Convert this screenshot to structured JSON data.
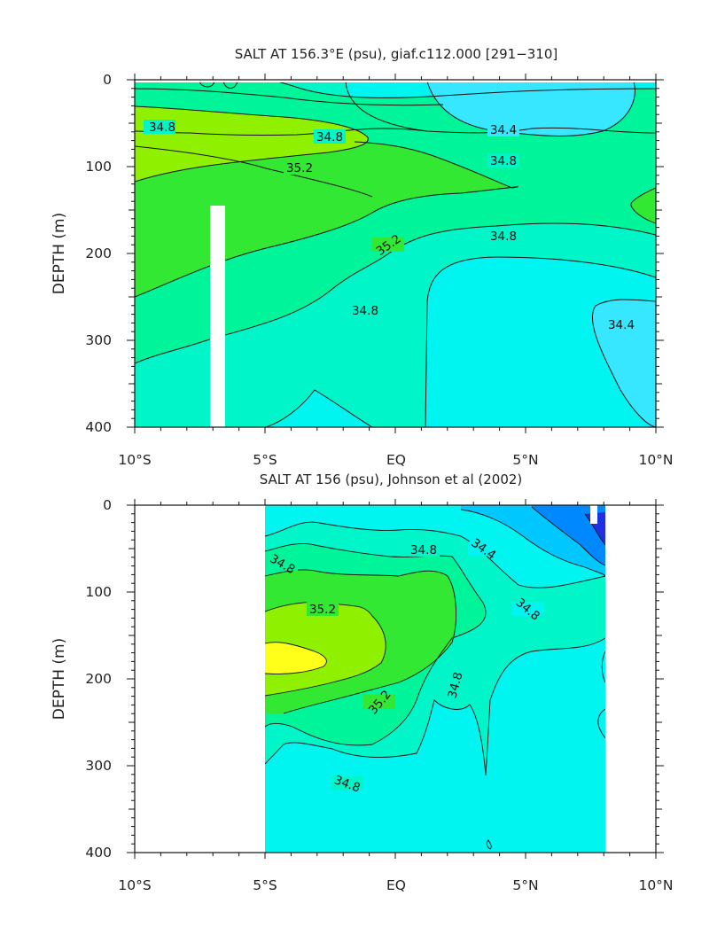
{
  "chart_data": [
    {
      "type": "contour",
      "title": "SALT AT 156.3°E (psu), giaf.c112.000 [291−310]",
      "xlabel": "",
      "ylabel": "DEPTH (m)",
      "x_ticks": [
        "10°S",
        "5°S",
        "EQ",
        "5°N",
        "10°N"
      ],
      "y_ticks": [
        "0",
        "100",
        "200",
        "300",
        "400"
      ],
      "xlim": [
        -10,
        10
      ],
      "ylim": [
        400,
        0
      ],
      "contour_labels": [
        "34.8",
        "34.8",
        "35.2",
        "34.4",
        "34.8",
        "35.2",
        "34.8",
        "34.8",
        "34.4"
      ],
      "bands": [
        {
          "range": "34.2-34.4",
          "color": "#37e6ff"
        },
        {
          "range": "34.4-34.6",
          "color": "#00f5f0"
        },
        {
          "range": "34.6-34.8",
          "color": "#00f5c8"
        },
        {
          "range": "34.8-35.0",
          "color": "#00f59a"
        },
        {
          "range": "35.0-35.2",
          "color": "#33e832"
        },
        {
          "range": "35.2-35.4",
          "color": "#8ff000"
        }
      ]
    },
    {
      "type": "contour",
      "title": "SALT AT 156 (psu), Johnson et al (2002)",
      "xlabel": "",
      "ylabel": "DEPTH (m)",
      "x_ticks": [
        "10°S",
        "5°S",
        "EQ",
        "5°N",
        "10°N"
      ],
      "y_ticks": [
        "0",
        "100",
        "200",
        "300",
        "400"
      ],
      "xlim": [
        -10,
        10
      ],
      "ylim": [
        400,
        0
      ],
      "data_extent_lon": [
        -5,
        8
      ],
      "contour_labels": [
        "34.8",
        "34.8",
        "34.4",
        "34.8",
        "35.2",
        "35.2",
        "34.8",
        "34.8"
      ],
      "bands": [
        {
          "range": "<34.0",
          "color": "#2030e0"
        },
        {
          "range": "34.0-34.2",
          "color": "#0088ff"
        },
        {
          "range": "34.2-34.4",
          "color": "#00c8ff"
        },
        {
          "range": "34.4-34.6",
          "color": "#00f5f0"
        },
        {
          "range": "34.6-34.8",
          "color": "#00f5c8"
        },
        {
          "range": "34.8-35.0",
          "color": "#00f59a"
        },
        {
          "range": "35.0-35.2",
          "color": "#33e832"
        },
        {
          "range": "35.2-35.4",
          "color": "#8ff000"
        },
        {
          "range": ">35.4",
          "color": "#ffff1a"
        }
      ]
    }
  ]
}
